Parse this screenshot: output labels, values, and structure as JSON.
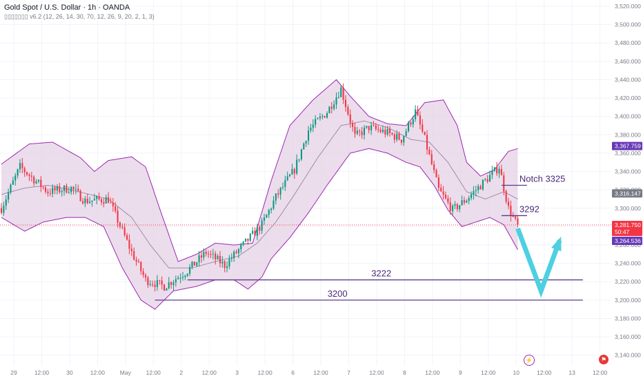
{
  "header": {
    "title": "Gold Spot / U.S. Dollar · 1h · OANDA",
    "indicator": "▯▯▯▯▯▯▯ v6.2 (12, 26, 14, 30, 70, 12, 26, 9, 20, 2, 1, 3)"
  },
  "colors": {
    "up": "#089981",
    "down": "#f23645",
    "band_fill": "#e6d2e6",
    "band_line": "#9c27b0",
    "basis": "#a08ca8",
    "level_line": "#5c3a8a",
    "label_purple": "#673ab7",
    "label_gray": "#787b86",
    "label_red": "#f23645",
    "arrow": "#4dd0e1",
    "price_line": "#f23645"
  },
  "chart_data": {
    "type": "candlestick",
    "symbol": "Gold Spot / U.S. Dollar",
    "timeframe": "1h",
    "source": "OANDA",
    "ylim": [
      3130,
      3520
    ],
    "y_ticks": [
      3140,
      3160,
      3180,
      3200,
      3220,
      3240,
      3260,
      3280,
      3300,
      3320,
      3340,
      3360,
      3380,
      3400,
      3420,
      3440,
      3460,
      3480,
      3500,
      3520
    ],
    "y_tick_labels": [
      "3,140.000",
      "3,160.000",
      "3,180.000",
      "3,200.000",
      "3,220.000",
      "3,240.000",
      "3,260.000",
      "3,280.000",
      "3,300.000",
      "3,320.000",
      "3,340.000",
      "3,360.000",
      "3,380.000",
      "3,400.000",
      "3,420.000",
      "3,440.000",
      "3,460.000",
      "3,480.000",
      "3,500.000",
      "3,520.000"
    ],
    "x_ticks": [
      "29",
      "12:00",
      "30",
      "12:00",
      "May",
      "12:00",
      "2",
      "12:00",
      "3",
      "12:00",
      "6",
      "12:00",
      "7",
      "12:00",
      "8",
      "12:00",
      "9",
      "12:00",
      "10",
      "12:00",
      "13",
      "12:00"
    ],
    "x_tick_bar_index": [
      0,
      12,
      24,
      36,
      48,
      60,
      72,
      84,
      96,
      108,
      120,
      132,
      144,
      156,
      168,
      180,
      192,
      204,
      216,
      228,
      240,
      252
    ],
    "bar_count": 254,
    "last_bar_index": 222,
    "path_keypoints": [
      [
        0,
        3300
      ],
      [
        8,
        3345
      ],
      [
        20,
        3318
      ],
      [
        30,
        3322
      ],
      [
        36,
        3308
      ],
      [
        46,
        3310
      ],
      [
        56,
        3252
      ],
      [
        62,
        3222
      ],
      [
        70,
        3215
      ],
      [
        80,
        3232
      ],
      [
        88,
        3252
      ],
      [
        96,
        3238
      ],
      [
        104,
        3260
      ],
      [
        112,
        3282
      ],
      [
        118,
        3312
      ],
      [
        126,
        3342
      ],
      [
        132,
        3385
      ],
      [
        140,
        3405
      ],
      [
        146,
        3430
      ],
      [
        152,
        3378
      ],
      [
        158,
        3388
      ],
      [
        166,
        3382
      ],
      [
        172,
        3375
      ],
      [
        178,
        3405
      ],
      [
        182,
        3375
      ],
      [
        188,
        3320
      ],
      [
        194,
        3298
      ],
      [
        200,
        3310
      ],
      [
        208,
        3330
      ],
      [
        214,
        3345
      ],
      [
        218,
        3300
      ],
      [
        222,
        3280
      ]
    ],
    "bollinger": {
      "upper": [
        [
          0,
          3348
        ],
        [
          12,
          3370
        ],
        [
          22,
          3372
        ],
        [
          34,
          3355
        ],
        [
          40,
          3340
        ],
        [
          46,
          3352
        ],
        [
          56,
          3356
        ],
        [
          62,
          3345
        ],
        [
          68,
          3300
        ],
        [
          76,
          3242
        ],
        [
          84,
          3250
        ],
        [
          92,
          3262
        ],
        [
          100,
          3260
        ],
        [
          108,
          3262
        ],
        [
          116,
          3330
        ],
        [
          124,
          3390
        ],
        [
          134,
          3418
        ],
        [
          144,
          3440
        ],
        [
          150,
          3422
        ],
        [
          158,
          3400
        ],
        [
          166,
          3392
        ],
        [
          174,
          3390
        ],
        [
          182,
          3415
        ],
        [
          190,
          3418
        ],
        [
          196,
          3390
        ],
        [
          200,
          3350
        ],
        [
          206,
          3335
        ],
        [
          212,
          3342
        ],
        [
          218,
          3362
        ],
        [
          222,
          3365
        ]
      ],
      "lower": [
        [
          0,
          3290
        ],
        [
          10,
          3275
        ],
        [
          18,
          3285
        ],
        [
          28,
          3290
        ],
        [
          36,
          3290
        ],
        [
          44,
          3280
        ],
        [
          52,
          3235
        ],
        [
          60,
          3200
        ],
        [
          66,
          3190
        ],
        [
          74,
          3210
        ],
        [
          84,
          3215
        ],
        [
          92,
          3222
        ],
        [
          100,
          3222
        ],
        [
          106,
          3212
        ],
        [
          112,
          3225
        ],
        [
          116,
          3245
        ],
        [
          124,
          3268
        ],
        [
          132,
          3295
        ],
        [
          140,
          3325
        ],
        [
          150,
          3360
        ],
        [
          158,
          3365
        ],
        [
          166,
          3360
        ],
        [
          174,
          3350
        ],
        [
          180,
          3345
        ],
        [
          186,
          3325
        ],
        [
          192,
          3298
        ],
        [
          198,
          3280
        ],
        [
          204,
          3285
        ],
        [
          210,
          3290
        ],
        [
          216,
          3282
        ],
        [
          222,
          3255
        ]
      ],
      "basis": [
        [
          0,
          3315
        ],
        [
          10,
          3322
        ],
        [
          20,
          3325
        ],
        [
          30,
          3320
        ],
        [
          38,
          3315
        ],
        [
          46,
          3310
        ],
        [
          56,
          3290
        ],
        [
          64,
          3260
        ],
        [
          72,
          3235
        ],
        [
          82,
          3235
        ],
        [
          92,
          3242
        ],
        [
          102,
          3248
        ],
        [
          110,
          3262
        ],
        [
          118,
          3285
        ],
        [
          126,
          3315
        ],
        [
          136,
          3355
        ],
        [
          146,
          3390
        ],
        [
          156,
          3395
        ],
        [
          166,
          3388
        ],
        [
          176,
          3375
        ],
        [
          184,
          3372
        ],
        [
          192,
          3350
        ],
        [
          200,
          3318
        ],
        [
          208,
          3310
        ],
        [
          216,
          3318
        ],
        [
          222,
          3310
        ]
      ]
    },
    "levels": [
      {
        "label": "Notch 3325",
        "value": 3325,
        "from_bar": 215,
        "to_bar": 226
      },
      {
        "label": "3292",
        "value": 3292,
        "from_bar": 215,
        "to_bar": 226
      },
      {
        "label": "3222",
        "value": 3222,
        "from_bar": 80,
        "to_bar": 250
      },
      {
        "label": "3200",
        "value": 3200,
        "from_bar": 66,
        "to_bar": 250
      }
    ],
    "projection": [
      [
        222,
        3278
      ],
      [
        232,
        3210
      ],
      [
        240,
        3265
      ]
    ],
    "price_badges": [
      {
        "value": 3367.759,
        "label": "3,367.759",
        "color": "#673ab7"
      },
      {
        "value": 3316.147,
        "label": "3,316.147",
        "color": "#787b86"
      },
      {
        "value": 3281.75,
        "label": "3,281.750",
        "extra": "50:47",
        "color": "#f23645"
      },
      {
        "value": 3264.536,
        "label": "3,264.536",
        "color": "#673ab7"
      }
    ],
    "current_price": 3281.75
  }
}
